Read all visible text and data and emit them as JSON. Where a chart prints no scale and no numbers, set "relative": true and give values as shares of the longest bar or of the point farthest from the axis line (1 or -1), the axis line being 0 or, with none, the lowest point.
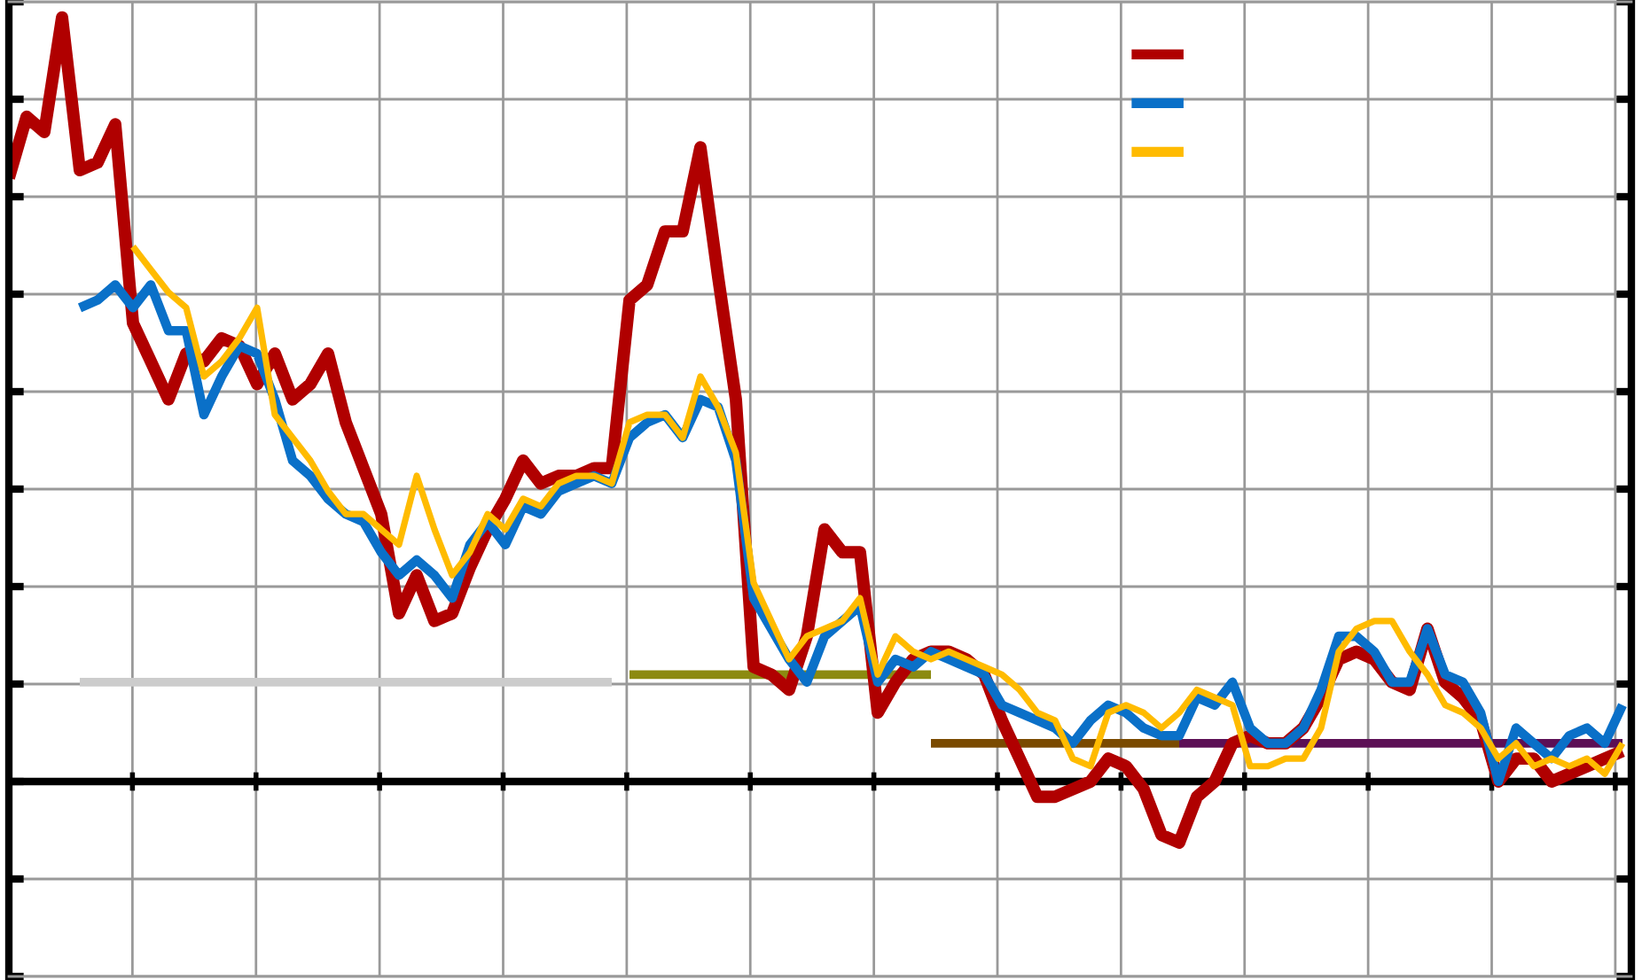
{
  "chart_data": {
    "type": "line",
    "relative": true,
    "grid": true,
    "marker": "none",
    "line_style": "solid",
    "categories": [
      null,
      null,
      null,
      null,
      null,
      null,
      null,
      null,
      null,
      null,
      null,
      null,
      null,
      null,
      null,
      null,
      null,
      null,
      null,
      null,
      null,
      null,
      null,
      null,
      null,
      null,
      null,
      null,
      null,
      null,
      null,
      null,
      null,
      null,
      null,
      null,
      null,
      null,
      null,
      null,
      null,
      null,
      null,
      null,
      null,
      null,
      null,
      null,
      null,
      null,
      null,
      null,
      null,
      null,
      null,
      null,
      null,
      null,
      null,
      null,
      null,
      null,
      null,
      null,
      null,
      null,
      null,
      null,
      null,
      null,
      null,
      null,
      null,
      null,
      null,
      null,
      null,
      null,
      null,
      null,
      null,
      null,
      null,
      null,
      null,
      null,
      null,
      null,
      null,
      null,
      null,
      null
    ],
    "series": [
      {
        "type": "line",
        "color": "#b00000",
        "values": [
          0.79,
          0.87,
          0.85,
          1.0,
          0.8,
          0.81,
          0.86,
          0.6,
          0.55,
          0.5,
          0.56,
          0.55,
          0.58,
          0.57,
          0.52,
          0.56,
          0.5,
          0.52,
          0.56,
          0.47,
          0.41,
          0.35,
          0.22,
          0.27,
          0.21,
          0.22,
          0.28,
          0.33,
          0.37,
          0.42,
          0.39,
          0.4,
          0.4,
          0.41,
          0.41,
          0.63,
          0.65,
          0.72,
          0.72,
          0.83,
          0.66,
          0.5,
          0.15,
          0.14,
          0.12,
          0.19,
          0.33,
          0.3,
          0.3,
          0.09,
          0.13,
          0.16,
          0.17,
          0.17,
          0.16,
          0.14,
          0.08,
          0.03,
          -0.02,
          -0.02,
          -0.01,
          0.0,
          0.03,
          0.02,
          -0.01,
          -0.07,
          -0.08,
          -0.02,
          0.0,
          0.05,
          0.06,
          0.05,
          0.05,
          0.07,
          0.11,
          0.16,
          0.17,
          0.16,
          0.13,
          0.12,
          0.2,
          0.13,
          0.11,
          0.08,
          0.0,
          0.03,
          0.03,
          0.0,
          0.01,
          0.02,
          0.03,
          0.04
        ]
      },
      {
        "type": "line",
        "color": "#0a70c8",
        "values": [
          null,
          null,
          null,
          null,
          0.62,
          0.63,
          0.65,
          0.62,
          0.65,
          0.59,
          0.59,
          0.48,
          0.53,
          0.57,
          0.56,
          0.5,
          0.42,
          0.4,
          0.37,
          0.35,
          0.34,
          0.3,
          0.27,
          0.29,
          0.27,
          0.24,
          0.31,
          0.34,
          0.31,
          0.36,
          0.35,
          0.38,
          0.39,
          0.4,
          0.39,
          0.45,
          0.47,
          0.48,
          0.45,
          0.5,
          0.49,
          0.42,
          0.24,
          0.2,
          0.16,
          0.13,
          0.19,
          0.21,
          0.23,
          0.13,
          0.16,
          0.15,
          0.17,
          0.16,
          0.15,
          0.14,
          0.1,
          0.09,
          0.08,
          0.07,
          0.05,
          0.08,
          0.1,
          0.09,
          0.07,
          0.06,
          0.06,
          0.11,
          0.1,
          0.13,
          0.07,
          0.05,
          0.05,
          0.07,
          0.12,
          0.19,
          0.19,
          0.17,
          0.13,
          0.13,
          0.2,
          0.14,
          0.13,
          0.09,
          0.0,
          0.07,
          0.05,
          0.03,
          0.06,
          0.07,
          0.05,
          0.1
        ]
      },
      {
        "type": "line",
        "color": "#ffbb00",
        "values": [
          null,
          null,
          null,
          null,
          null,
          null,
          null,
          0.7,
          0.67,
          0.64,
          0.62,
          0.53,
          0.55,
          0.58,
          0.62,
          0.48,
          0.45,
          0.42,
          0.38,
          0.35,
          0.35,
          0.33,
          0.31,
          0.4,
          0.33,
          0.27,
          0.3,
          0.35,
          0.33,
          0.37,
          0.36,
          0.39,
          0.4,
          0.4,
          0.39,
          0.47,
          0.48,
          0.48,
          0.45,
          0.53,
          0.49,
          0.43,
          0.26,
          0.21,
          0.16,
          0.19,
          0.2,
          0.21,
          0.24,
          0.14,
          0.19,
          0.17,
          0.16,
          0.17,
          0.16,
          0.15,
          0.14,
          0.12,
          0.09,
          0.08,
          0.03,
          0.02,
          0.09,
          0.1,
          0.09,
          0.07,
          0.09,
          0.12,
          0.11,
          0.1,
          0.02,
          0.02,
          0.03,
          0.03,
          0.07,
          0.17,
          0.2,
          0.21,
          0.21,
          0.17,
          0.14,
          0.1,
          0.09,
          0.07,
          0.03,
          0.05,
          0.02,
          0.03,
          0.02,
          0.03,
          0.01,
          0.05
        ]
      },
      {
        "type": "step",
        "color": "#cccccc",
        "values": [
          null,
          null,
          null,
          null,
          0.13,
          0.13,
          0.13,
          0.13,
          0.13,
          0.13,
          0.13,
          0.13,
          0.13,
          0.13,
          0.13,
          0.13,
          0.13,
          0.13,
          0.13,
          0.13,
          0.13,
          0.13,
          0.13,
          0.13,
          0.13,
          0.13,
          0.13,
          0.13,
          0.13,
          0.13,
          0.13,
          0.13,
          0.13,
          0.13,
          0.13,
          null,
          null,
          null,
          null,
          null,
          null,
          null,
          null,
          null,
          null,
          null,
          null,
          null,
          null,
          null,
          null,
          null,
          null,
          null,
          null,
          null,
          null,
          null,
          null,
          null,
          null,
          null,
          null,
          null,
          null,
          null,
          null,
          null,
          null,
          null,
          null,
          null,
          null,
          null,
          null,
          null,
          null,
          null,
          null,
          null,
          null,
          null,
          null,
          null,
          null,
          null,
          null,
          null,
          null,
          null,
          null,
          null
        ]
      },
      {
        "type": "step",
        "color": "#8c8a10",
        "values": [
          null,
          null,
          null,
          null,
          null,
          null,
          null,
          null,
          null,
          null,
          null,
          null,
          null,
          null,
          null,
          null,
          null,
          null,
          null,
          null,
          null,
          null,
          null,
          null,
          null,
          null,
          null,
          null,
          null,
          null,
          null,
          null,
          null,
          null,
          null,
          0.14,
          0.14,
          0.14,
          0.14,
          0.14,
          0.14,
          0.14,
          0.14,
          0.14,
          0.14,
          0.14,
          0.14,
          0.14,
          0.14,
          0.14,
          0.14,
          0.14,
          0.14,
          null,
          null,
          null,
          null,
          null,
          null,
          null,
          null,
          null,
          null,
          null,
          null,
          null,
          null,
          null,
          null,
          null,
          null,
          null,
          null,
          null,
          null,
          null,
          null,
          null,
          null,
          null,
          null,
          null,
          null,
          null,
          null,
          null,
          null,
          null,
          null,
          null,
          null,
          null
        ]
      },
      {
        "type": "step",
        "color": "#7a4a00",
        "values": [
          null,
          null,
          null,
          null,
          null,
          null,
          null,
          null,
          null,
          null,
          null,
          null,
          null,
          null,
          null,
          null,
          null,
          null,
          null,
          null,
          null,
          null,
          null,
          null,
          null,
          null,
          null,
          null,
          null,
          null,
          null,
          null,
          null,
          null,
          null,
          null,
          null,
          null,
          null,
          null,
          null,
          null,
          null,
          null,
          null,
          null,
          null,
          null,
          null,
          null,
          null,
          null,
          0.05,
          0.05,
          0.05,
          0.05,
          0.05,
          0.05,
          0.05,
          0.05,
          0.05,
          0.05,
          0.05,
          0.05,
          0.05,
          0.05,
          0.05,
          null,
          null,
          null,
          null,
          null,
          null,
          null,
          null,
          null,
          null,
          null,
          null,
          null,
          null,
          null,
          null,
          null,
          null,
          null,
          null,
          null,
          null,
          null,
          null,
          null
        ]
      },
      {
        "type": "step",
        "color": "#5c0f55",
        "values": [
          null,
          null,
          null,
          null,
          null,
          null,
          null,
          null,
          null,
          null,
          null,
          null,
          null,
          null,
          null,
          null,
          null,
          null,
          null,
          null,
          null,
          null,
          null,
          null,
          null,
          null,
          null,
          null,
          null,
          null,
          null,
          null,
          null,
          null,
          null,
          null,
          null,
          null,
          null,
          null,
          null,
          null,
          null,
          null,
          null,
          null,
          null,
          null,
          null,
          null,
          null,
          null,
          null,
          null,
          null,
          null,
          null,
          null,
          null,
          null,
          null,
          null,
          null,
          null,
          null,
          null,
          0.05,
          0.05,
          0.05,
          0.05,
          0.05,
          0.05,
          0.05,
          0.05,
          0.05,
          0.05,
          0.05,
          0.05,
          0.05,
          0.05,
          0.05,
          0.05,
          0.05,
          0.05,
          0.05,
          0.05,
          0.05,
          0.05,
          0.05,
          0.05,
          0.05,
          0.05
        ]
      }
    ]
  }
}
